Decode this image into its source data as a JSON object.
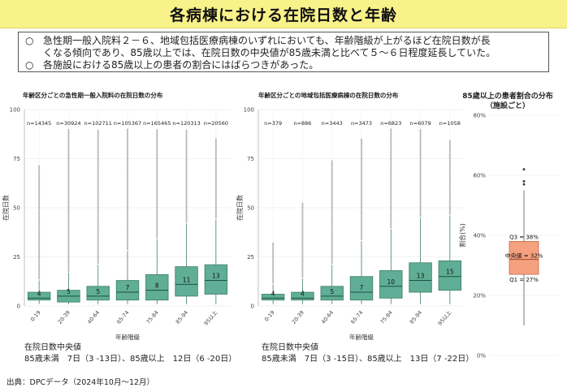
{
  "header": {
    "title": "各病棟における在院日数と年齢"
  },
  "summary": {
    "marker": "○",
    "point1_line1": "急性期一般入院料２－６、地域包括医療病棟のいずれにおいても、年齢階級が上がるほど在院日数が長",
    "point1_line2": "くなる傾向であり、85歳以上では、在院日数の中央値が85歳未満と比べて５～６日程度延長していた。",
    "point2": "各施設における85歳以上の患者の割合にはばらつきがあった。"
  },
  "source": "出典：DPCデータ（2024年10月～12月）",
  "chart_data": [
    {
      "type": "box",
      "title": "年齢区分ごとの急性期一般入院料の在院日数の分布",
      "xlabel": "年齢階級",
      "ylabel": "在院日数",
      "ylim": [
        0,
        100
      ],
      "yticks": [
        "0",
        "25",
        "50",
        "75",
        "100"
      ],
      "categories": [
        "0-19",
        "20-39",
        "40-64",
        "65-74",
        "75-84",
        "85-94",
        "95以上"
      ],
      "n_labels": [
        "n=14345",
        "n=30924",
        "n=102711",
        "n=105367",
        "n=165465",
        "n=120313",
        "n=20560"
      ],
      "median_labels": [
        "4",
        "5",
        "5",
        "7",
        "8",
        "11",
        "13"
      ],
      "boxes": [
        {
          "q1": 3,
          "median": 4,
          "q3": 7,
          "whisker_low": 1,
          "whisker_high": 13,
          "outlier_max": 72
        },
        {
          "q1": 2,
          "median": 5,
          "q3": 8,
          "whisker_low": 1,
          "whisker_high": 17,
          "outlier_max": 90
        },
        {
          "q1": 3,
          "median": 5,
          "q3": 10,
          "whisker_low": 1,
          "whisker_high": 21,
          "outlier_max": 90
        },
        {
          "q1": 3,
          "median": 7,
          "q3": 13,
          "whisker_low": 1,
          "whisker_high": 28,
          "outlier_max": 90
        },
        {
          "q1": 3,
          "median": 8,
          "q3": 16,
          "whisker_low": 1,
          "whisker_high": 34,
          "outlier_max": 90
        },
        {
          "q1": 5,
          "median": 11,
          "q3": 20,
          "whisker_low": 1,
          "whisker_high": 42,
          "outlier_max": 90
        },
        {
          "q1": 6,
          "median": 13,
          "q3": 21,
          "whisker_low": 1,
          "whisker_high": 44,
          "outlier_max": 85
        }
      ],
      "note_title": "在院日数中央値",
      "note_line": "85歳未満　7日（3 -13日）、85歳以上　12日（6 -20日）"
    },
    {
      "type": "box",
      "title": "年齢区分ごとの地域包括医療病棟の在院日数の分布",
      "xlabel": "年齢階級",
      "ylabel": "在院日数",
      "ylim": [
        0,
        100
      ],
      "yticks": [
        "0",
        "25",
        "50",
        "75",
        "100"
      ],
      "categories": [
        "0-19",
        "20-39",
        "40-64",
        "65-74",
        "75-84",
        "85-94",
        "95以上"
      ],
      "n_labels": [
        "n=379",
        "n=886",
        "n=3443",
        "n=3473",
        "n=6823",
        "n=6079",
        "n=1058"
      ],
      "median_labels": [
        "4",
        "4",
        "5",
        "7",
        "10",
        "13",
        "15"
      ],
      "boxes": [
        {
          "q1": 3,
          "median": 4,
          "q3": 6,
          "whisker_low": 1,
          "whisker_high": 11,
          "outlier_max": 32
        },
        {
          "q1": 3,
          "median": 4,
          "q3": 7,
          "whisker_low": 1,
          "whisker_high": 14,
          "outlier_max": 53
        },
        {
          "q1": 3,
          "median": 5,
          "q3": 10,
          "whisker_low": 1,
          "whisker_high": 21,
          "outlier_max": 74
        },
        {
          "q1": 3,
          "median": 7,
          "q3": 15,
          "whisker_low": 1,
          "whisker_high": 33,
          "outlier_max": 85
        },
        {
          "q1": 4,
          "median": 10,
          "q3": 18,
          "whisker_low": 1,
          "whisker_high": 39,
          "outlier_max": 90
        },
        {
          "q1": 7,
          "median": 13,
          "q3": 22,
          "whisker_low": 1,
          "whisker_high": 45,
          "outlier_max": 90
        },
        {
          "q1": 8,
          "median": 15,
          "q3": 23,
          "whisker_low": 1,
          "whisker_high": 46,
          "outlier_max": 85
        }
      ],
      "note_title": "在院日数中央値",
      "note_line": "85歳未満　7日（3 -15日）、85歳以上　13日（7 -22日）"
    },
    {
      "type": "box",
      "title": "85歳以上の患者割合の分布",
      "subtitle": "（施設ごと）",
      "ylabel": "割合(%)",
      "ylim": [
        0,
        80
      ],
      "yticks": [
        "0%",
        "20%",
        "40%",
        "60%",
        "80%"
      ],
      "box": {
        "q1": 27,
        "median": 32,
        "q3": 38,
        "whisker_low": 10,
        "whisker_high": 55,
        "outliers": [
          57,
          58,
          62
        ]
      },
      "annotations": {
        "q3": "Q3 = 38%",
        "median": "中央値 = 32%",
        "q1": "Q1 = 27%"
      }
    }
  ],
  "colors": {
    "box_fill": "#5fae95",
    "box_stroke": "#3f7d6a",
    "outlier": "#b5b5b5",
    "facility_box": "#f5a07e",
    "title_bg": "#f9f28a"
  }
}
